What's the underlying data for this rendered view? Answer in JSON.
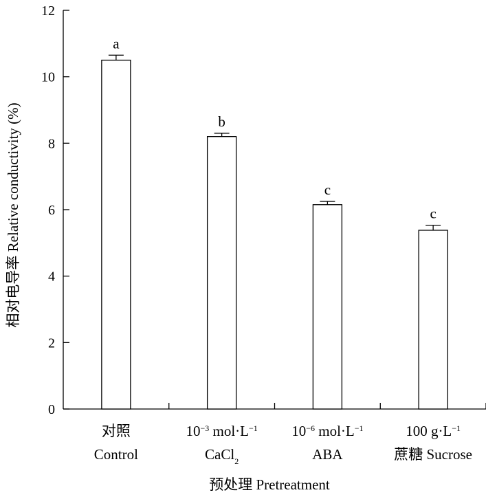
{
  "chart_data": {
    "type": "bar",
    "title": "",
    "xlabel": "预处理 Pretreatment",
    "ylabel": "相对电导率 Relative conductivity (%)",
    "ylim": [
      0,
      12
    ],
    "yticks": [
      "0",
      "2",
      "4",
      "6",
      "8",
      "10",
      "12"
    ],
    "categories": [
      {
        "line1": [
          {
            "t": "对照"
          }
        ],
        "line2": [
          {
            "t": "Control"
          }
        ]
      },
      {
        "line1": [
          {
            "t": "10"
          },
          {
            "t": "−3",
            "sup": true
          },
          {
            "t": " mol·L"
          },
          {
            "t": "−1",
            "sup": true
          }
        ],
        "line2": [
          {
            "t": "CaCl"
          },
          {
            "t": "2",
            "sub": true
          }
        ]
      },
      {
        "line1": [
          {
            "t": "10"
          },
          {
            "t": "−6",
            "sup": true
          },
          {
            "t": " mol·L"
          },
          {
            "t": "−1",
            "sup": true
          }
        ],
        "line2": [
          {
            "t": "ABA"
          }
        ]
      },
      {
        "line1": [
          {
            "t": "100 g·L"
          },
          {
            "t": "−1",
            "sup": true
          }
        ],
        "line2": [
          {
            "t": "蔗糖 Sucrose"
          }
        ]
      }
    ],
    "values": [
      10.5,
      8.2,
      6.15,
      5.38
    ],
    "errors": [
      0.15,
      0.1,
      0.1,
      0.15
    ],
    "significance": [
      "a",
      "b",
      "c",
      "c"
    ]
  }
}
